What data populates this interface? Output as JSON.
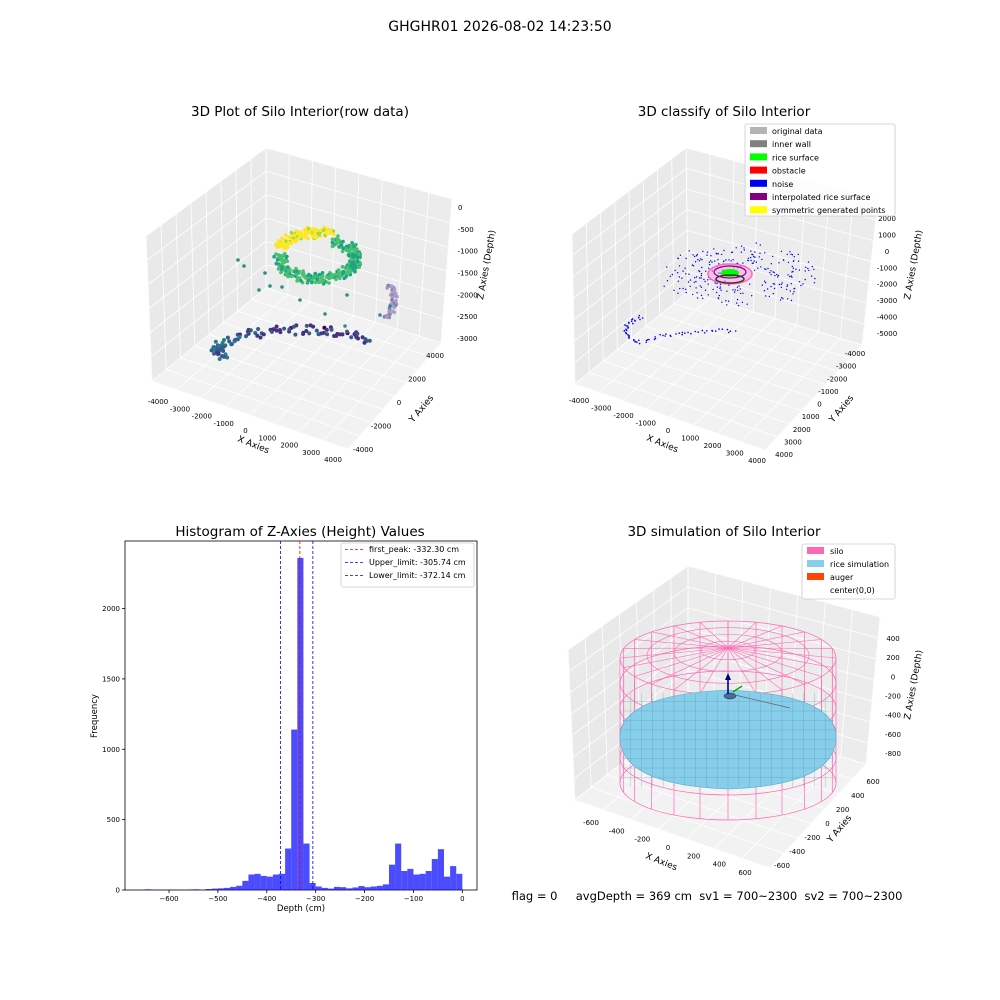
{
  "figure": {
    "suptitle": "GHGHR01 2026-08-02 14:23:50",
    "footer": "flag = 0     avgDepth = 369 cm  sv1 = 700~2300  sv2 = 700~2300"
  },
  "panels": {
    "raw": {
      "title": "3D Plot of Silo Interior(row data)",
      "xlabel": "X Axies",
      "ylabel": "Y Axies",
      "zlabel": "Z Axies (Depth)",
      "xticks": [
        "-4000",
        "-3000",
        "-2000",
        "-1000",
        "0",
        "1000",
        "2000",
        "3000",
        "4000"
      ],
      "yticks": [
        "-4000",
        "-2000",
        "0",
        "2000",
        "4000"
      ],
      "zticks": [
        "0",
        "-500",
        "-1000",
        "-1500",
        "-2000",
        "-2500",
        "-3000"
      ]
    },
    "classify": {
      "title": "3D classify of Silo Interior",
      "xlabel": "X Axies",
      "ylabel": "Y Axies",
      "zlabel": "Z Axies (Depth)",
      "xticks": [
        "-4000",
        "-3000",
        "-2000",
        "-1000",
        "0",
        "1000",
        "2000",
        "3000",
        "4000"
      ],
      "yticks": [
        "-4000",
        "-3000",
        "-2000",
        "-1000",
        "0",
        "1000",
        "2000",
        "3000",
        "4000"
      ],
      "zticks": [
        "2000",
        "1000",
        "0",
        "-1000",
        "-2000",
        "-3000",
        "-4000",
        "-5000"
      ],
      "legend": [
        {
          "label": "original data",
          "color": "#b4b4b4"
        },
        {
          "label": "inner wall",
          "color": "#808080"
        },
        {
          "label": "rice surface",
          "color": "#00ff00"
        },
        {
          "label": "obstacle",
          "color": "#ff0000"
        },
        {
          "label": "noise",
          "color": "#0000ee"
        },
        {
          "label": "interpolated rice surface",
          "color": "#800080"
        },
        {
          "label": "symmetric generated points",
          "color": "#ffff00"
        }
      ]
    },
    "histogram": {
      "title": "Histogram of Z-Axies (Height) Values",
      "xlabel": "Depth (cm)",
      "ylabel": "Frequency",
      "lines": [
        {
          "label": "first_peak: -332.30 cm",
          "value": -332.3,
          "color": "#ff0000"
        },
        {
          "label": "Upper_limit: -305.74 cm",
          "value": -305.74,
          "color": "#0000ff"
        },
        {
          "label": "Lower_limit: -372.14 cm",
          "value": -372.14,
          "color": "#0000ff"
        }
      ]
    },
    "simulation": {
      "title": "3D simulation of Silo Interior",
      "xlabel": "X Axies",
      "ylabel": "Y Axies",
      "zlabel": "Z Axies (Depth)",
      "xticks": [
        "-600",
        "-400",
        "-200",
        "0",
        "200",
        "400",
        "600"
      ],
      "yticks": [
        "600",
        "400",
        "200",
        "0",
        "-200",
        "-400",
        "-600"
      ],
      "zticks": [
        "400",
        "200",
        "0",
        "-200",
        "-400",
        "-600",
        "-800"
      ],
      "legend": [
        {
          "label": "silo",
          "color": "#ff69b4"
        },
        {
          "label": "rice simulation",
          "color": "#87ceeb"
        },
        {
          "label": "auger",
          "color": "#ff4500"
        },
        {
          "label": "center(0,0)",
          "color": ""
        }
      ]
    }
  },
  "chart_data": [
    {
      "type": "scatter",
      "title": "3D Plot of Silo Interior(row data)",
      "xlabel": "X Axies",
      "ylabel": "Y Axies",
      "zlabel": "Z Axies (Depth)",
      "xlim": [
        -4000,
        4000
      ],
      "ylim": [
        -4000,
        4000
      ],
      "zlim": [
        -3000,
        0
      ]
    },
    {
      "type": "scatter",
      "title": "3D classify of Silo Interior",
      "xlabel": "X Axies",
      "ylabel": "Y Axies",
      "zlabel": "Z Axies (Depth)",
      "xlim": [
        -4000,
        4000
      ],
      "ylim": [
        -4000,
        4000
      ],
      "zlim": [
        -5000,
        2000
      ],
      "series": [
        {
          "name": "original data"
        },
        {
          "name": "inner wall"
        },
        {
          "name": "rice surface"
        },
        {
          "name": "obstacle"
        },
        {
          "name": "noise"
        },
        {
          "name": "interpolated rice surface"
        },
        {
          "name": "symmetric generated points"
        }
      ],
      "legend": "top-right"
    },
    {
      "type": "bar",
      "title": "Histogram of Z-Axies (Height) Values",
      "xlabel": "Depth (cm)",
      "ylabel": "Frequency",
      "xlim": [
        -690,
        30
      ],
      "ylim": [
        0,
        2480
      ],
      "xticks": [
        -600,
        -500,
        -400,
        -300,
        -200,
        -100,
        0
      ],
      "yticks": [
        0,
        500,
        1000,
        1500,
        2000
      ],
      "bin_width": 12.5,
      "bins": [
        [
          -650,
          5
        ],
        [
          -637.5,
          3
        ],
        [
          -625,
          2
        ],
        [
          -600,
          3
        ],
        [
          -587.5,
          2
        ],
        [
          -562.5,
          4
        ],
        [
          -550,
          5
        ],
        [
          -537.5,
          3
        ],
        [
          -525,
          7
        ],
        [
          -512.5,
          10
        ],
        [
          -500,
          12
        ],
        [
          -487.5,
          15
        ],
        [
          -475,
          22
        ],
        [
          -462.5,
          30
        ],
        [
          -450,
          65
        ],
        [
          -437.5,
          110
        ],
        [
          -425,
          115
        ],
        [
          -412.5,
          100
        ],
        [
          -400,
          95
        ],
        [
          -387.5,
          110
        ],
        [
          -375,
          115
        ],
        [
          -362.5,
          295
        ],
        [
          -350,
          1140
        ],
        [
          -337.5,
          2360
        ],
        [
          -325,
          330
        ],
        [
          -312.5,
          50
        ],
        [
          -300,
          25
        ],
        [
          -287.5,
          15
        ],
        [
          -275,
          10
        ],
        [
          -262.5,
          22
        ],
        [
          -250,
          20
        ],
        [
          -237.5,
          12
        ],
        [
          -225,
          18
        ],
        [
          -212.5,
          28
        ],
        [
          -200,
          20
        ],
        [
          -187.5,
          25
        ],
        [
          -175,
          30
        ],
        [
          -162.5,
          40
        ],
        [
          -150,
          180
        ],
        [
          -137.5,
          330
        ],
        [
          -125,
          135
        ],
        [
          -112.5,
          150
        ],
        [
          -100,
          110
        ],
        [
          -87.5,
          115
        ],
        [
          -75,
          135
        ],
        [
          -62.5,
          220
        ],
        [
          -50,
          290
        ],
        [
          -37.5,
          95
        ],
        [
          -25,
          170
        ],
        [
          -12.5,
          115
        ]
      ],
      "vlines": [
        {
          "label": "first_peak: -332.30 cm",
          "value": -332.3
        },
        {
          "label": "Upper_limit: -305.74 cm",
          "value": -305.74
        },
        {
          "label": "Lower_limit: -372.14 cm",
          "value": -372.14
        }
      ],
      "legend": "top-right"
    },
    {
      "type": "scatter",
      "title": "3D simulation of Silo Interior",
      "xlabel": "X Axies",
      "ylabel": "Y Axies",
      "zlabel": "Z Axies (Depth)",
      "xlim": [
        -700,
        700
      ],
      "ylim": [
        -700,
        700
      ],
      "zlim": [
        -900,
        500
      ],
      "series": [
        {
          "name": "silo"
        },
        {
          "name": "rice simulation"
        },
        {
          "name": "auger"
        },
        {
          "name": "center(0,0)"
        }
      ],
      "legend": "top-right"
    }
  ]
}
